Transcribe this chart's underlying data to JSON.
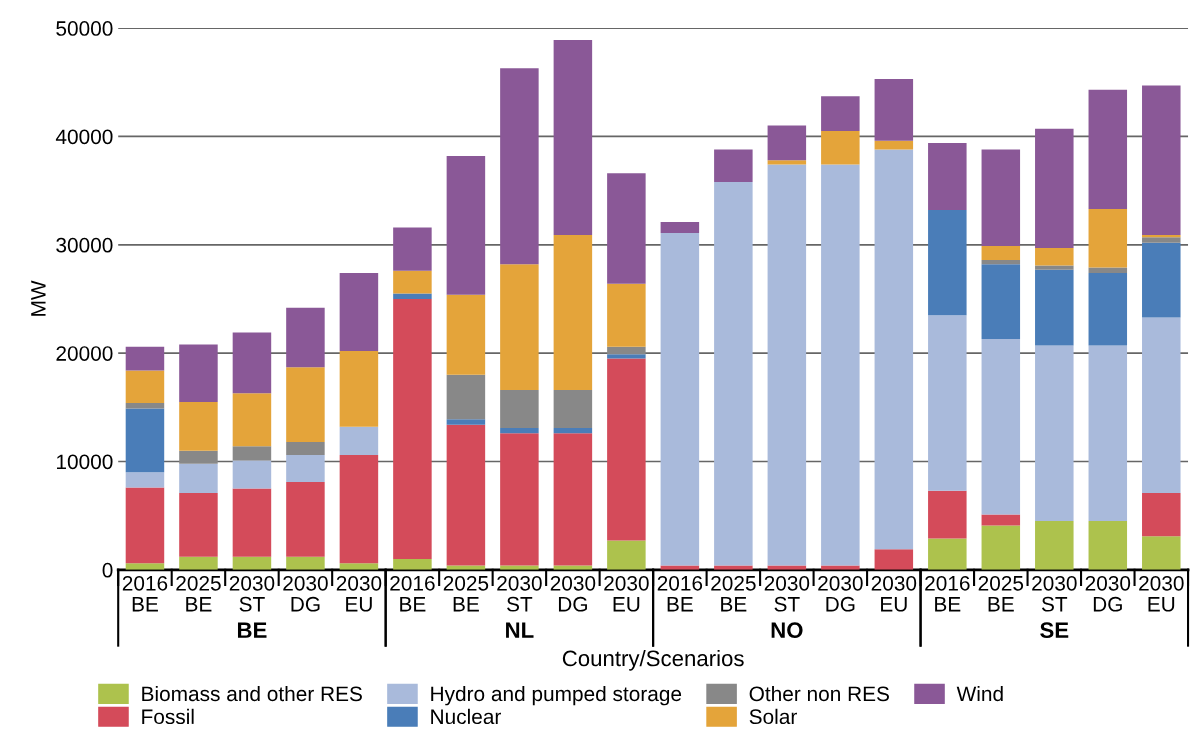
{
  "chart_data": {
    "type": "bar",
    "stacked": true,
    "ylabel": "MW",
    "xlabel": "Country/Scenarios",
    "categories": [
      "2016\nBE",
      "2025\nBE",
      "2030\nST",
      "2030\nDG",
      "2030\nEU",
      "2016\nBE",
      "2025\nBE",
      "2030\nST",
      "2030\nDG",
      "2030\nEU",
      "2016\nBE",
      "2025\nBE",
      "2030\nST",
      "2030\nDG",
      "2030\nEU",
      "2016\nBE",
      "2025\nBE",
      "2030\nST",
      "2030\nDG",
      "2030\nEU"
    ],
    "annotations": [
      "BE",
      "NL",
      "NO",
      "SE"
    ],
    "ylim": [
      0,
      50000
    ],
    "yticks": [
      0,
      10000,
      20000,
      30000,
      40000,
      50000
    ],
    "grid": "y",
    "legend": "bottom",
    "series": [
      {
        "name": "Biomass and other RES",
        "color": "#adc24d",
        "values": [
          600,
          1200,
          1200,
          1200,
          600,
          1000,
          400,
          400,
          400,
          2700,
          0,
          0,
          0,
          0,
          0,
          2900,
          4100,
          4500,
          4500,
          3100
        ]
      },
      {
        "name": "Fossil",
        "color": "#d44b5a",
        "values": [
          7000,
          5900,
          6300,
          6900,
          10000,
          24000,
          13000,
          12200,
          12200,
          16800,
          400,
          400,
          400,
          400,
          1900,
          4400,
          1000,
          0,
          0,
          4000
        ]
      },
      {
        "name": "Hydro and pumped storage",
        "color": "#a9badb",
        "values": [
          1400,
          2700,
          2600,
          2500,
          2600,
          0,
          0,
          0,
          0,
          0,
          30700,
          35400,
          37000,
          37000,
          36900,
          16200,
          16200,
          16200,
          16200,
          16200
        ]
      },
      {
        "name": "Nuclear",
        "color": "#4a7db8",
        "values": [
          5900,
          0,
          0,
          0,
          0,
          500,
          500,
          500,
          500,
          400,
          0,
          0,
          0,
          0,
          0,
          9700,
          6900,
          7000,
          6700,
          6900
        ]
      },
      {
        "name": "Other non RES",
        "color": "#888888",
        "values": [
          500,
          1200,
          1300,
          1200,
          0,
          0,
          4100,
          3500,
          3500,
          700,
          0,
          0,
          0,
          0,
          0,
          0,
          400,
          400,
          500,
          500
        ]
      },
      {
        "name": "Solar",
        "color": "#e4a43a",
        "values": [
          3000,
          4500,
          4900,
          6900,
          7000,
          2100,
          7400,
          11600,
          14300,
          5800,
          0,
          0,
          400,
          3100,
          800,
          0,
          1300,
          1600,
          5400,
          200
        ]
      },
      {
        "name": "Wind",
        "color": "#8a5897",
        "values": [
          2200,
          5300,
          5600,
          5500,
          7200,
          4000,
          12800,
          18100,
          18000,
          10200,
          1000,
          3000,
          3200,
          3200,
          5700,
          6200,
          8900,
          11000,
          11000,
          13800
        ]
      }
    ]
  }
}
